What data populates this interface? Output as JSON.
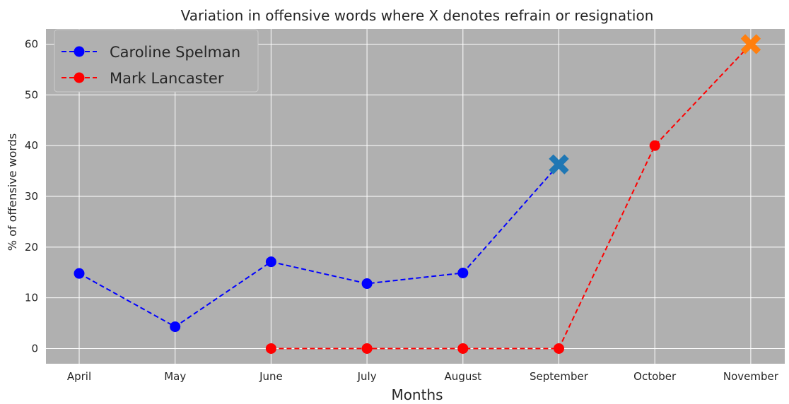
{
  "chart_data": {
    "type": "line",
    "title": "Variation in offensive words where X denotes refrain or resignation",
    "xlabel": "Months",
    "ylabel": "% of offensive words",
    "categories": [
      "April",
      "May",
      "June",
      "July",
      "August",
      "September",
      "October",
      "November"
    ],
    "ylim": [
      -3,
      63
    ],
    "yticks": [
      0,
      10,
      20,
      30,
      40,
      50,
      60
    ],
    "grid": true,
    "background_color": "#b0b0b0",
    "grid_color": "#ffffff",
    "legend_position": "top-left",
    "series": [
      {
        "name": "Caroline Spelman",
        "color": "#0000ff",
        "line_style": "dashed",
        "marker": "circle",
        "points": [
          {
            "x": "April",
            "y": 14.8
          },
          {
            "x": "May",
            "y": 4.3
          },
          {
            "x": "June",
            "y": 17.1
          },
          {
            "x": "July",
            "y": 12.8
          },
          {
            "x": "August",
            "y": 14.9
          },
          {
            "x": "September",
            "y": 36.3,
            "marker": "X"
          }
        ],
        "end_marker_color": "#1f77b4"
      },
      {
        "name": "Mark Lancaster",
        "color": "#ff0000",
        "line_style": "dashed",
        "marker": "circle",
        "points": [
          {
            "x": "June",
            "y": 0
          },
          {
            "x": "July",
            "y": 0
          },
          {
            "x": "August",
            "y": 0
          },
          {
            "x": "September",
            "y": 0
          },
          {
            "x": "October",
            "y": 40
          },
          {
            "x": "November",
            "y": 60,
            "marker": "X"
          }
        ],
        "end_marker_color": "#ff7f0e"
      }
    ]
  }
}
